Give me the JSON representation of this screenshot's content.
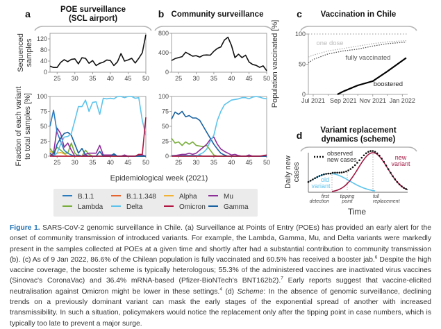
{
  "figure": {
    "panel_labels": {
      "a": "a",
      "b": "b",
      "c": "c",
      "d": "d"
    },
    "titles": {
      "a": [
        "POE surveillance",
        "(SCL airport)"
      ],
      "b": [
        "Community surveillance"
      ],
      "c": [
        "Vaccination in Chile"
      ],
      "d": [
        "Variant replacement",
        "dynamics (scheme)"
      ]
    },
    "ylabel_samples": [
      "Sequenced",
      "samples"
    ],
    "ylabel_fraction": [
      "Fraction of each variant",
      "to total samples [%]"
    ],
    "xlabel_weeks": "Epidemiological week (2021)",
    "legend": [
      {
        "name": "B.1.1",
        "color": "#2b7bbf"
      },
      {
        "name": "B.1.1.348",
        "color": "#e8642e"
      },
      {
        "name": "Alpha",
        "color": "#f2b233"
      },
      {
        "name": "Mu",
        "color": "#8c2d98"
      },
      {
        "name": "Lambda",
        "color": "#78ad3a"
      },
      {
        "name": "Delta",
        "color": "#5cc3ec"
      },
      {
        "name": "Omicron",
        "color": "#b01440"
      },
      {
        "name": "Gamma",
        "color": "#17609f"
      }
    ],
    "panel_d": {
      "ylabel": [
        "Daily new",
        "cases"
      ],
      "xlabel": "Time",
      "legend_observed": [
        "observed",
        "new cases"
      ],
      "old_variant": [
        "old",
        "variant"
      ],
      "new_variant": [
        "new",
        "variant"
      ],
      "old_color": "#5cc3ec",
      "new_color": "#a01a45",
      "markers": [
        [
          "first",
          "detection"
        ],
        [
          "tipping",
          "point"
        ],
        [
          "full",
          "replacement"
        ]
      ]
    }
  },
  "chart_data": [
    {
      "id": "a-samples",
      "type": "line",
      "panel": "a",
      "ylabel": "Sequenced samples",
      "x": [
        23,
        24,
        25,
        26,
        27,
        28,
        29,
        30,
        31,
        32,
        33,
        34,
        35,
        36,
        37,
        38,
        39,
        40,
        41,
        42,
        43,
        44,
        45,
        46,
        47,
        48,
        49,
        50
      ],
      "values": [
        22,
        17,
        17,
        35,
        45,
        38,
        46,
        48,
        30,
        52,
        50,
        32,
        42,
        24,
        32,
        36,
        44,
        42,
        24,
        37,
        67,
        40,
        44,
        50,
        33,
        50,
        70,
        135
      ],
      "xlim": [
        23,
        50
      ],
      "ylim": [
        0,
        140
      ],
      "xticks": [
        25,
        30,
        35,
        40,
        45,
        50
      ],
      "yticks": [
        0,
        40,
        80,
        120
      ]
    },
    {
      "id": "b-samples",
      "type": "line",
      "panel": "b",
      "ylabel": "Sequenced samples",
      "x": [
        23,
        24,
        25,
        26,
        27,
        28,
        29,
        30,
        31,
        32,
        33,
        34,
        35,
        36,
        37,
        38,
        39,
        40,
        41,
        42,
        43,
        44,
        45,
        46,
        47,
        48,
        49,
        50
      ],
      "values": [
        240,
        280,
        300,
        320,
        410,
        370,
        330,
        340,
        310,
        350,
        355,
        350,
        430,
        490,
        520,
        660,
        720,
        550,
        300,
        370,
        300,
        350,
        210,
        160,
        140,
        100,
        130,
        30
      ],
      "xlim": [
        23,
        50
      ],
      "ylim": [
        0,
        800
      ],
      "xticks": [
        25,
        30,
        35,
        40,
        45,
        50
      ],
      "yticks": [
        0,
        400,
        800
      ]
    },
    {
      "id": "a-fraction",
      "type": "line",
      "panel": "a",
      "ylabel": "Fraction of each variant to total samples [%]",
      "xlabel": "Epidemiological week (2021)",
      "x": [
        23,
        24,
        25,
        26,
        27,
        28,
        29,
        30,
        31,
        32,
        33,
        34,
        35,
        36,
        37,
        38,
        39,
        40,
        41,
        42,
        43,
        44,
        45,
        46,
        47,
        48,
        49,
        50
      ],
      "xlim": [
        23,
        50
      ],
      "ylim": [
        0,
        100
      ],
      "xticks": [
        25,
        30,
        35,
        40,
        45,
        50
      ],
      "yticks": [
        0,
        25,
        50,
        75,
        100
      ],
      "series": [
        {
          "name": "B.1.1.348",
          "values": [
            2,
            0,
            0,
            0,
            0,
            0,
            0,
            0,
            0,
            0,
            0,
            0,
            0,
            0,
            0,
            0,
            0,
            0,
            0,
            0,
            0,
            0,
            0,
            0,
            0,
            0,
            0,
            0
          ]
        },
        {
          "name": "Alpha",
          "values": [
            8,
            5,
            5,
            6,
            4,
            0,
            0,
            0,
            0,
            0,
            0,
            0,
            0,
            0,
            0,
            0,
            0,
            0,
            0,
            0,
            0,
            0,
            0,
            0,
            0,
            0,
            0,
            0
          ]
        },
        {
          "name": "Lambda",
          "values": [
            13,
            5,
            15,
            10,
            5,
            5,
            22,
            5,
            0,
            0,
            10,
            3,
            0,
            0,
            0,
            0,
            0,
            0,
            0,
            0,
            0,
            0,
            0,
            0,
            0,
            0,
            0,
            0
          ]
        },
        {
          "name": "Mu",
          "values": [
            0,
            5,
            47,
            38,
            15,
            22,
            10,
            0,
            2,
            0,
            3,
            5,
            5,
            5,
            18,
            2,
            2,
            2,
            2,
            0,
            0,
            2,
            0,
            0,
            0,
            2,
            2,
            0
          ]
        },
        {
          "name": "B.1.1",
          "values": [
            50,
            77,
            40,
            25,
            10,
            5,
            2,
            0,
            2,
            0,
            0,
            0,
            0,
            0,
            0,
            0,
            0,
            0,
            2,
            0,
            0,
            0,
            0,
            0,
            0,
            0,
            0,
            0
          ]
        },
        {
          "name": "Gamma",
          "values": [
            5,
            0,
            20,
            30,
            38,
            40,
            35,
            20,
            5,
            13,
            2,
            0,
            0,
            0,
            8,
            0,
            0,
            0,
            4,
            0,
            0,
            0,
            0,
            0,
            0,
            0,
            0,
            0
          ]
        },
        {
          "name": "Delta",
          "values": [
            0,
            0,
            5,
            20,
            32,
            33,
            38,
            60,
            83,
            83,
            94,
            75,
            90,
            91,
            70,
            97,
            96,
            97,
            96,
            100,
            100,
            98,
            100,
            100,
            97,
            98,
            60,
            35
          ]
        },
        {
          "name": "Omicron",
          "values": [
            0,
            0,
            0,
            0,
            0,
            0,
            0,
            0,
            0,
            0,
            0,
            0,
            0,
            0,
            0,
            0,
            0,
            0,
            0,
            0,
            0,
            0,
            0,
            0,
            0,
            3,
            3,
            65
          ]
        }
      ]
    },
    {
      "id": "b-fraction",
      "type": "line",
      "panel": "b",
      "ylabel": "Fraction of each variant to total samples [%]",
      "xlabel": "Epidemiological week (2021)",
      "x": [
        23,
        24,
        25,
        26,
        27,
        28,
        29,
        30,
        31,
        32,
        33,
        34,
        35,
        36,
        37,
        38,
        39,
        40,
        41,
        42,
        43,
        44,
        45,
        46,
        47,
        48,
        49,
        50
      ],
      "xlim": [
        23,
        50
      ],
      "ylim": [
        0,
        100
      ],
      "xticks": [
        25,
        30,
        35,
        40,
        45,
        50
      ],
      "yticks": [
        0,
        25,
        50,
        75,
        100
      ],
      "series": [
        {
          "name": "B.1.1.348",
          "values": [
            0,
            0,
            0,
            0,
            0,
            0,
            0,
            0,
            0,
            0,
            0,
            0,
            0,
            0,
            0,
            0,
            0,
            0,
            0,
            0,
            0,
            0,
            0,
            0,
            0,
            0,
            0,
            0
          ]
        },
        {
          "name": "Alpha",
          "values": [
            0,
            0,
            0,
            0,
            0,
            0,
            0,
            0,
            0,
            0,
            0,
            0,
            0,
            0,
            0,
            0,
            0,
            0,
            0,
            0,
            0,
            0,
            0,
            0,
            0,
            0,
            0,
            0
          ]
        },
        {
          "name": "B.1.1",
          "values": [
            1,
            1,
            1,
            1,
            1,
            1,
            1,
            1,
            1,
            0,
            0,
            0,
            0,
            0,
            0,
            0,
            0,
            0,
            0,
            0,
            0,
            0,
            0,
            0,
            0,
            0,
            0,
            0
          ]
        },
        {
          "name": "Lambda",
          "values": [
            30,
            22,
            24,
            18,
            24,
            20,
            24,
            18,
            17,
            16,
            18,
            10,
            2,
            0,
            0,
            0,
            0,
            0,
            0,
            0,
            0,
            0,
            0,
            0,
            0,
            0,
            0,
            0
          ]
        },
        {
          "name": "Mu",
          "values": [
            0,
            1,
            2,
            3,
            3,
            5,
            3,
            5,
            10,
            15,
            20,
            28,
            32,
            20,
            12,
            8,
            5,
            2,
            3,
            1,
            0,
            0,
            2,
            0,
            0,
            0,
            0,
            0
          ]
        },
        {
          "name": "Gamma",
          "values": [
            62,
            74,
            70,
            75,
            66,
            68,
            64,
            64,
            60,
            50,
            40,
            30,
            20,
            12,
            5,
            2,
            0,
            0,
            0,
            0,
            0,
            0,
            0,
            0,
            0,
            0,
            0,
            0
          ]
        },
        {
          "name": "Delta",
          "values": [
            0,
            0,
            0,
            0,
            0,
            0,
            0,
            0,
            3,
            6,
            12,
            25,
            35,
            60,
            75,
            86,
            90,
            94,
            95,
            96,
            98,
            98,
            96,
            99,
            100,
            99,
            97,
            96
          ]
        },
        {
          "name": "Omicron",
          "values": [
            0,
            0,
            0,
            0,
            0,
            0,
            0,
            0,
            0,
            0,
            0,
            0,
            0,
            0,
            0,
            0,
            0,
            0,
            0,
            0,
            0,
            0,
            0,
            0,
            0,
            0,
            1,
            2
          ]
        }
      ]
    },
    {
      "id": "c-vaccination",
      "type": "line",
      "panel": "c",
      "title": "Vaccination in Chile",
      "ylabel": "Population vaccinated [%]",
      "x_unit": "days since 1 Jul 2021",
      "xlim": [
        -10,
        195
      ],
      "ylim": [
        0,
        100
      ],
      "xticks": [
        {
          "value": 0,
          "label": "Jul 2021"
        },
        {
          "value": 62,
          "label": "Sep 2021"
        },
        {
          "value": 123,
          "label": "Nov 2021"
        },
        {
          "value": 184,
          "label": "Jan 2022"
        }
      ],
      "minor_xticks": [
        31,
        92,
        153
      ],
      "yticks": [
        0,
        50,
        100
      ],
      "series": [
        {
          "name": "one dose",
          "color": "#b0b0b0",
          "style": "dotted",
          "x": [
            -10,
            0,
            31,
            62,
            92,
            123,
            153,
            192
          ],
          "values": [
            62,
            65,
            72,
            76,
            80,
            84,
            87,
            89
          ]
        },
        {
          "name": "fully vaccinated",
          "color": "#555555",
          "style": "dotted",
          "x": [
            -10,
            0,
            31,
            62,
            92,
            123,
            153,
            192
          ],
          "values": [
            52,
            58,
            67,
            72,
            75,
            80,
            84,
            86.6
          ]
        },
        {
          "name": "boostered",
          "color": "#000000",
          "style": "solid",
          "x": [
            50,
            62,
            92,
            123,
            153,
            192
          ],
          "values": [
            0,
            5,
            15,
            22,
            38,
            60.5
          ]
        }
      ]
    }
  ],
  "caption": {
    "label": "Figure 1.",
    "t1": " SARS-CoV-2 genomic surveillance in Chile. (a) Surveillance at Points of Entry (POEs) has provided an early alert for the onset of community transmission of introduced variants. For example, the Lambda, Gamma, Mu, and Delta variants were markedly present in the samples collected at POEs at a given time and shortly after had a substantial contribution to community transmission (b). (c) As of 9 Jan 2022, 86.6% of the Chilean population is fully vaccinated and 60.5% has received a booster jab.",
    "s1": "6",
    "t2": " Despite the high vaccine coverage, the booster scheme is typically heterologous; 55.3% of the administered vaccines are inactivated virus vaccines (Sinovac's CoronaVac) and 36.4% mRNA-based (Pfizer-BioNTech's BNT162b2).",
    "s2": "7",
    "t3": " Early reports suggest that vaccine-elicited neutralisation against Omicron might be lower in these settings.",
    "s3": "4",
    "t4": " (d) ",
    "em": "Scheme",
    "t5": ": In the absence of genomic surveillance, declining trends on a previously dominant variant can mask the early stages of the exponential spread of another with increased transmissibility. In such a situation, policymakers would notice the replacement only after the tipping point in case numbers, which is typically too late to prevent a major surge."
  }
}
